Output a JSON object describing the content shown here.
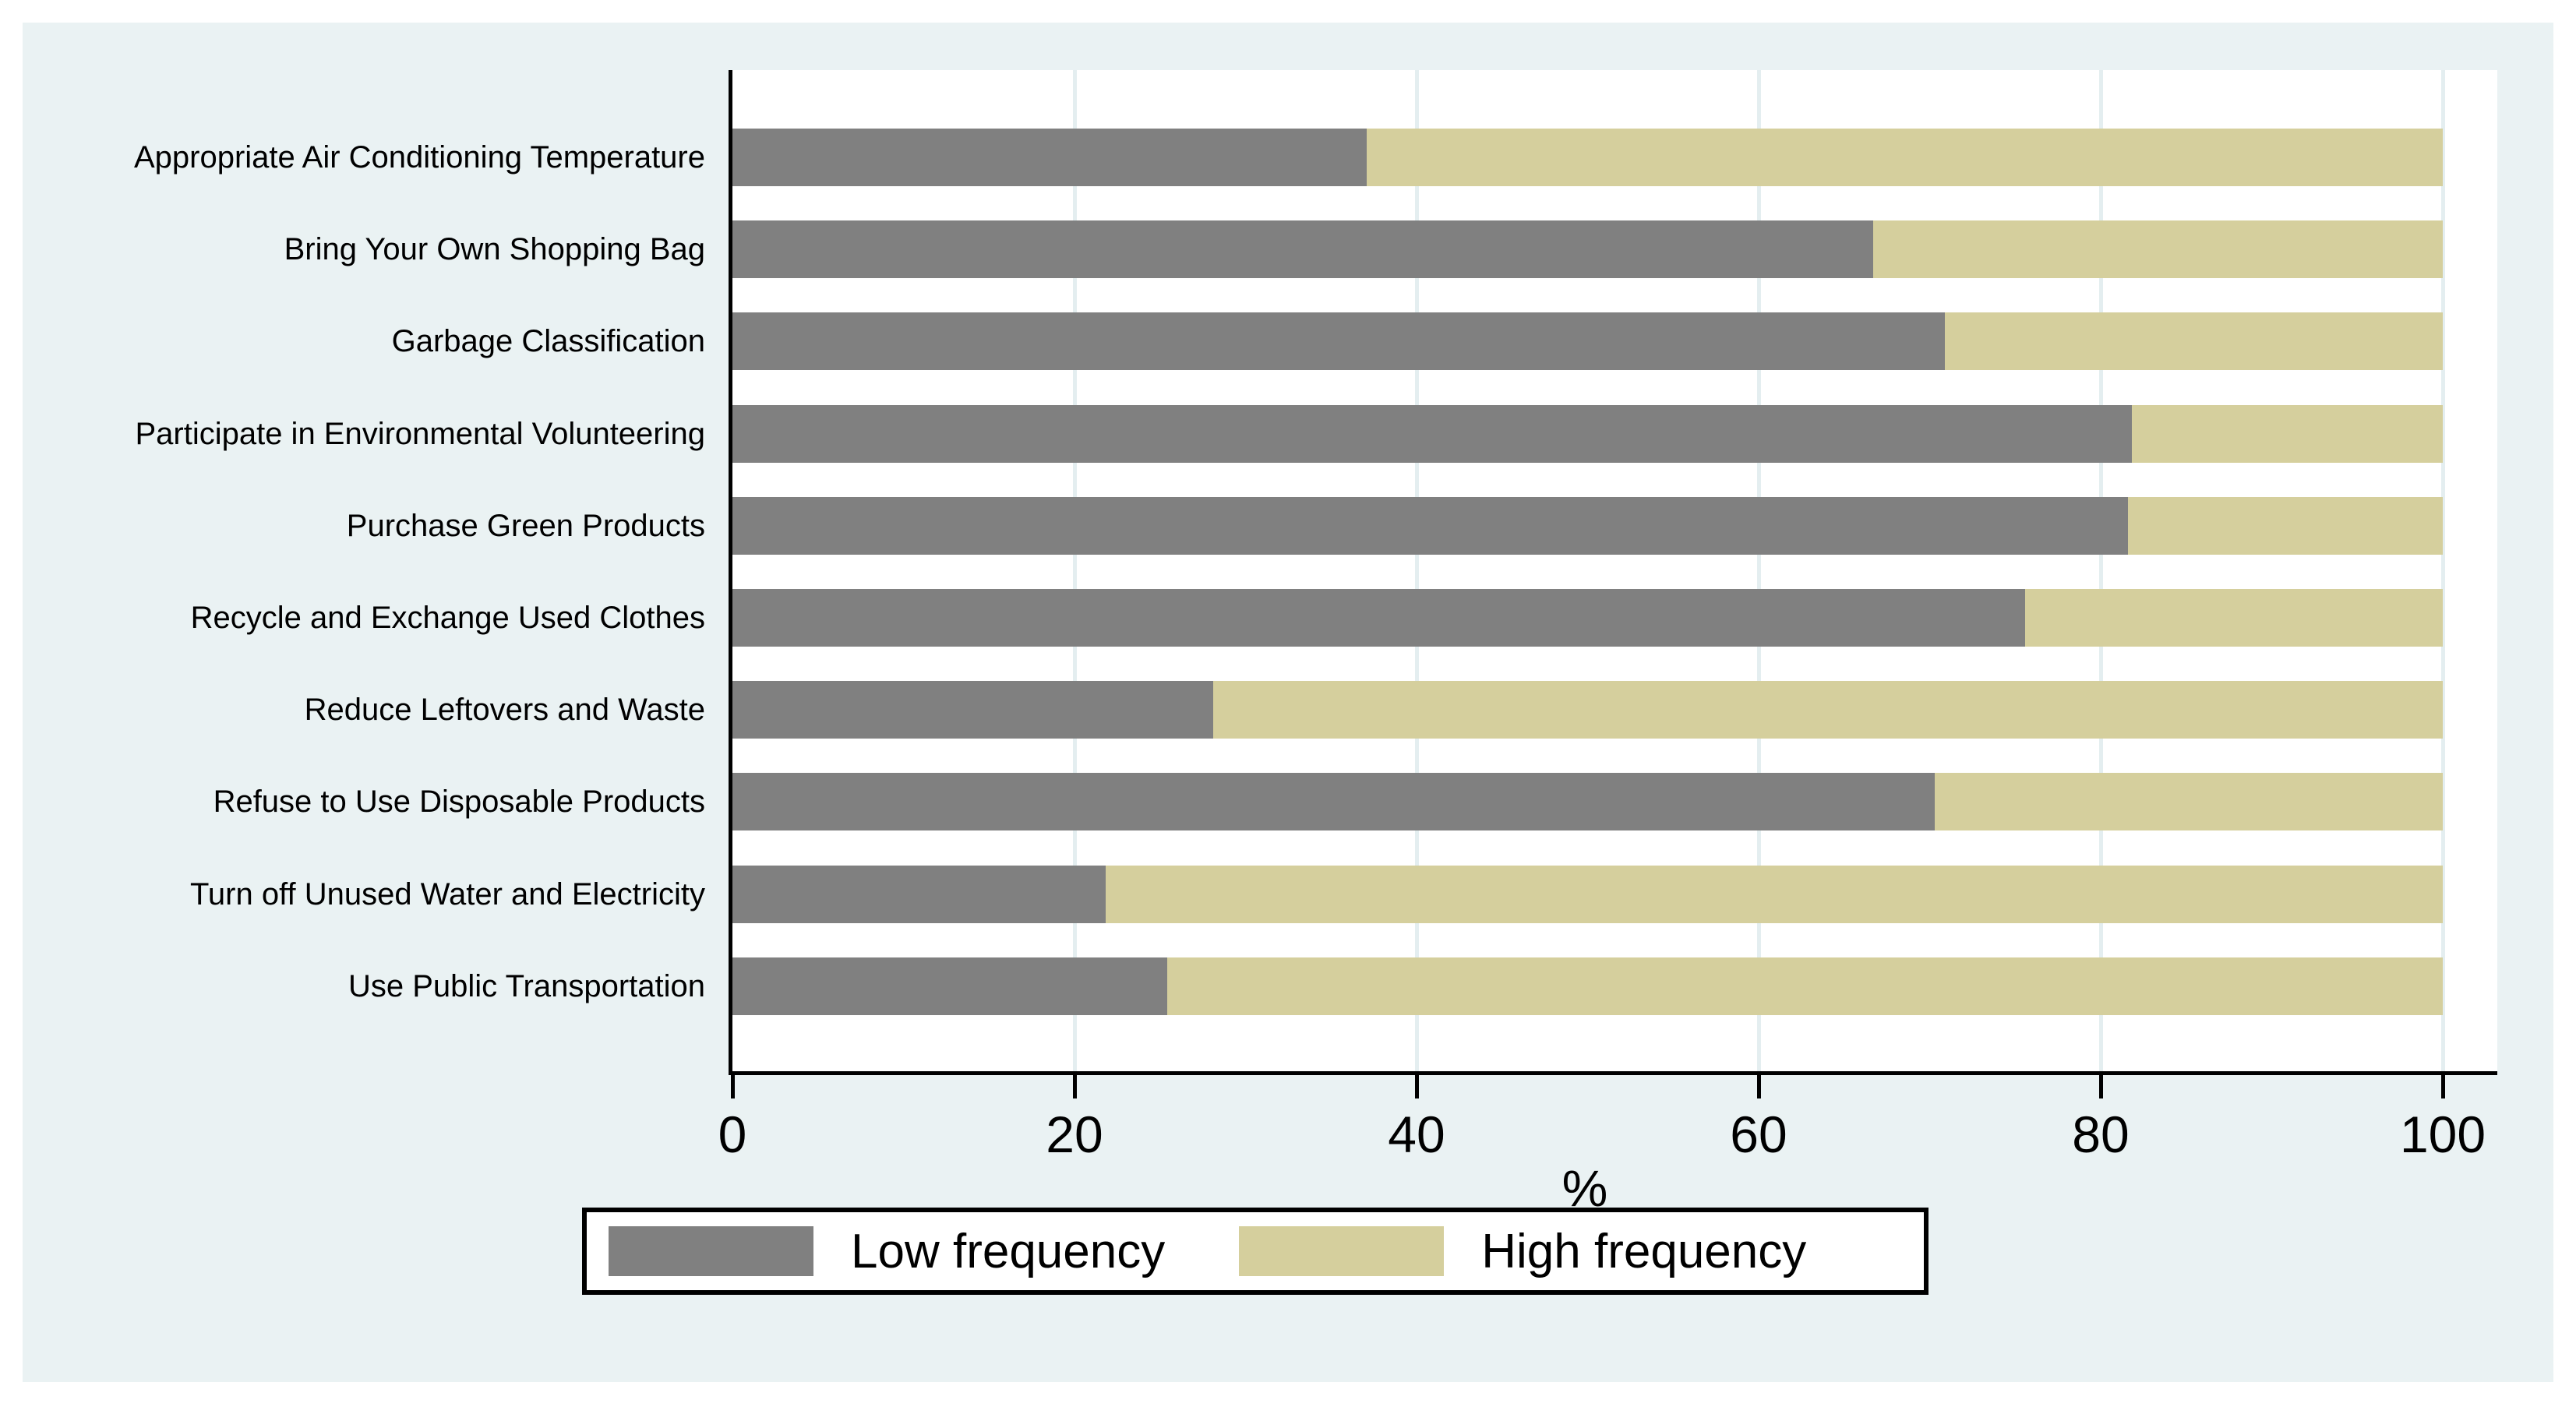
{
  "chart_data": {
    "type": "bar",
    "orientation": "horizontal",
    "stacked": true,
    "title": "",
    "xlabel": "%",
    "ylabel": "",
    "xlim": [
      0,
      100
    ],
    "x_ticks": [
      0,
      20,
      40,
      60,
      80,
      100
    ],
    "grid": true,
    "legend_position": "bottom-center",
    "categories": [
      "Appropriate Air Conditioning Temperature",
      "Bring Your Own Shopping Bag",
      "Garbage Classification",
      "Participate in Environmental Volunteering",
      "Purchase Green Products",
      "Recycle and Exchange Used Clothes",
      "Reduce Leftovers and Waste",
      "Refuse to Use Disposable Products",
      "Turn off Unused Water and Electricity",
      "Use Public Transportation"
    ],
    "series": [
      {
        "name": "Low frequency",
        "color": "#808080",
        "values": [
          37.1,
          66.7,
          70.9,
          81.8,
          81.6,
          75.6,
          28.1,
          70.3,
          21.8,
          25.4
        ]
      },
      {
        "name": "High frequency",
        "color": "#d5cf9d",
        "values": [
          62.9,
          33.3,
          29.1,
          18.2,
          18.4,
          24.4,
          71.9,
          29.7,
          78.2,
          74.6
        ]
      }
    ]
  },
  "colors": {
    "page_background": "#ffffff",
    "canvas_background": "#eaf2f3",
    "plot_background": "#ffffff",
    "gridline": "#e4eef0",
    "axis": "#000000",
    "text": "#000000"
  }
}
